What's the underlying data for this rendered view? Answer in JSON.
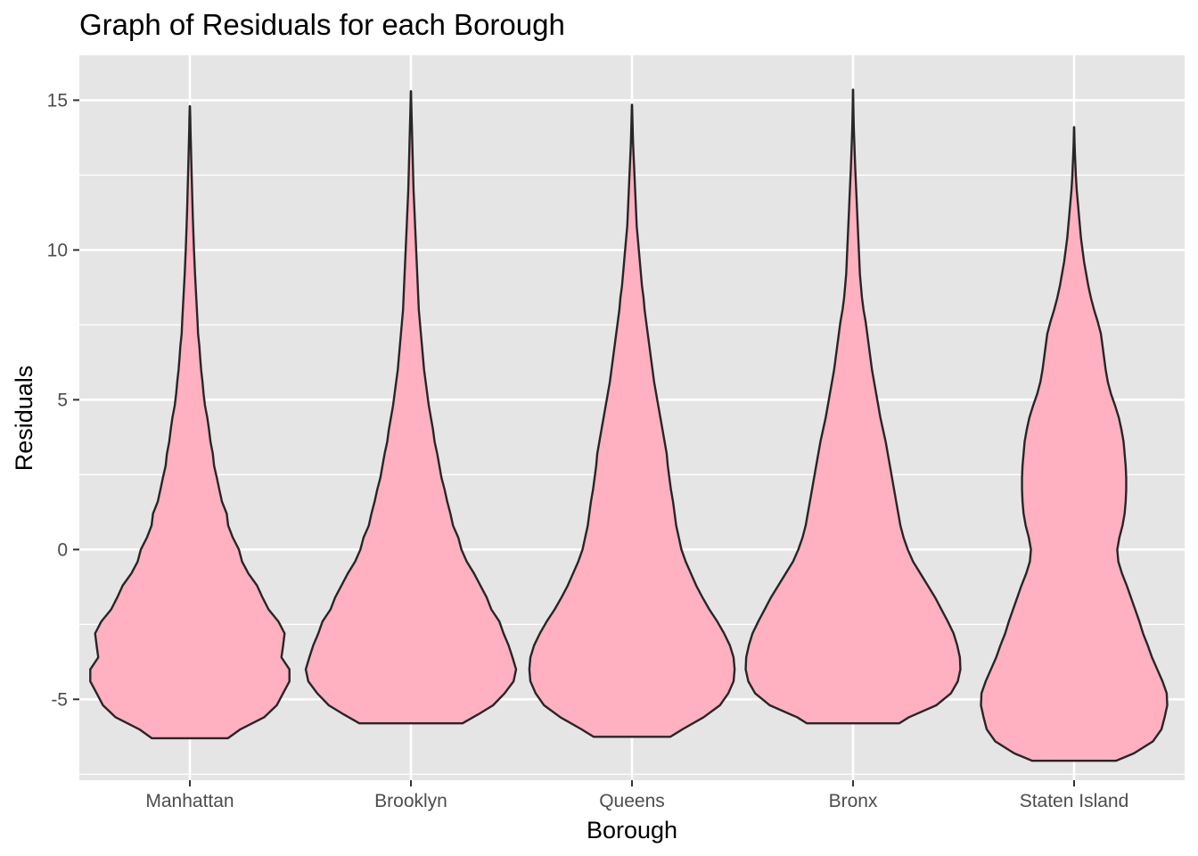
{
  "chart_data": {
    "type": "violin",
    "title": "Graph of Residuals for each Borough",
    "xlabel": "Borough",
    "ylabel": "Residuals",
    "categories": [
      "Manhattan",
      "Brooklyn",
      "Queens",
      "Bronx",
      "Staten Island"
    ],
    "ylim": [
      -7.7,
      16.5
    ],
    "yticks": [
      -5,
      0,
      5,
      10,
      15
    ],
    "ytick_labels": [
      "-5",
      "0",
      "5",
      "10",
      "15"
    ],
    "grid": true,
    "legend": "none",
    "colors": {
      "panel": "#e5e5e5",
      "grid": "#ffffff",
      "fill": "#ffb0c1",
      "outline": "#262626",
      "tick_text": "#4d4d4d",
      "axis_tick": "#333333"
    },
    "violins": [
      {
        "name": "Manhattan",
        "profile": [
          [
            -6.3,
            0.1716
          ],
          [
            -6.0,
            0.2286
          ],
          [
            -5.6,
            0.3357
          ],
          [
            -5.2,
            0.3929
          ],
          [
            -4.8,
            0.4215
          ],
          [
            -4.4,
            0.4505
          ],
          [
            -4.0,
            0.4505
          ],
          [
            -3.6,
            0.4143
          ],
          [
            -3.2,
            0.4219
          ],
          [
            -2.8,
            0.4286
          ],
          [
            -2.4,
            0.4005
          ],
          [
            -2.0,
            0.3562
          ],
          [
            -1.6,
            0.3286
          ],
          [
            -1.2,
            0.3038
          ],
          [
            -0.8,
            0.2648
          ],
          [
            -0.4,
            0.2362
          ],
          [
            0.0,
            0.2219
          ],
          [
            0.4,
            0.1943
          ],
          [
            0.8,
            0.1733
          ],
          [
            1.2,
            0.1667
          ],
          [
            1.6,
            0.1452
          ],
          [
            2.0,
            0.1333
          ],
          [
            2.4,
            0.1219
          ],
          [
            2.8,
            0.1095
          ],
          [
            3.2,
            0.1038
          ],
          [
            3.6,
            0.0933
          ],
          [
            4.0,
            0.0867
          ],
          [
            4.4,
            0.079
          ],
          [
            4.8,
            0.0686
          ],
          [
            5.2,
            0.062
          ],
          [
            5.6,
            0.0571
          ],
          [
            6.0,
            0.051
          ],
          [
            6.4,
            0.0467
          ],
          [
            6.8,
            0.0429
          ],
          [
            7.2,
            0.0371
          ],
          [
            7.6,
            0.0348
          ],
          [
            8.0,
            0.0319
          ],
          [
            8.4,
            0.029
          ],
          [
            8.8,
            0.0262
          ],
          [
            9.2,
            0.0233
          ],
          [
            9.6,
            0.021
          ],
          [
            10.0,
            0.0186
          ],
          [
            10.4,
            0.0167
          ],
          [
            10.8,
            0.0148
          ],
          [
            11.2,
            0.0129
          ],
          [
            11.6,
            0.0114
          ],
          [
            12.0,
            0.01
          ],
          [
            12.4,
            0.0086
          ],
          [
            12.8,
            0.0071
          ],
          [
            13.2,
            0.0057
          ],
          [
            13.6,
            0.0043
          ],
          [
            14.0,
            0.0029
          ],
          [
            14.4,
            0.0019
          ],
          [
            14.8,
            0.0005
          ]
        ]
      },
      {
        "name": "Brooklyn",
        "profile": [
          [
            -5.8,
            0.2333
          ],
          [
            -5.5,
            0.3048
          ],
          [
            -5.2,
            0.3714
          ],
          [
            -4.8,
            0.4238
          ],
          [
            -4.4,
            0.4643
          ],
          [
            -4.0,
            0.4757
          ],
          [
            -3.6,
            0.4595
          ],
          [
            -3.2,
            0.4419
          ],
          [
            -2.8,
            0.419
          ],
          [
            -2.4,
            0.4
          ],
          [
            -2.0,
            0.3638
          ],
          [
            -1.6,
            0.3429
          ],
          [
            -1.2,
            0.3143
          ],
          [
            -0.8,
            0.2857
          ],
          [
            -0.4,
            0.2524
          ],
          [
            0.0,
            0.2286
          ],
          [
            0.4,
            0.2143
          ],
          [
            0.8,
            0.1905
          ],
          [
            1.2,
            0.1786
          ],
          [
            1.6,
            0.1643
          ],
          [
            2.0,
            0.1524
          ],
          [
            2.4,
            0.1381
          ],
          [
            2.8,
            0.1286
          ],
          [
            3.2,
            0.119
          ],
          [
            3.6,
            0.1071
          ],
          [
            4.0,
            0.1
          ],
          [
            4.4,
            0.0905
          ],
          [
            4.8,
            0.081
          ],
          [
            5.2,
            0.0738
          ],
          [
            5.6,
            0.0667
          ],
          [
            6.0,
            0.0595
          ],
          [
            6.4,
            0.0548
          ],
          [
            6.8,
            0.05
          ],
          [
            7.2,
            0.0452
          ],
          [
            7.6,
            0.0405
          ],
          [
            8.0,
            0.0357
          ],
          [
            8.4,
            0.0333
          ],
          [
            8.8,
            0.031
          ],
          [
            9.2,
            0.0286
          ],
          [
            9.6,
            0.0262
          ],
          [
            10.0,
            0.0238
          ],
          [
            10.4,
            0.0214
          ],
          [
            10.8,
            0.019
          ],
          [
            11.2,
            0.0167
          ],
          [
            11.6,
            0.0143
          ],
          [
            12.0,
            0.0119
          ],
          [
            12.4,
            0.0105
          ],
          [
            12.8,
            0.009
          ],
          [
            13.2,
            0.0076
          ],
          [
            13.6,
            0.0062
          ],
          [
            14.0,
            0.0048
          ],
          [
            14.4,
            0.0033
          ],
          [
            14.8,
            0.0019
          ],
          [
            15.3,
            0.0005
          ]
        ]
      },
      {
        "name": "Queens",
        "profile": [
          [
            -6.25,
            0.1738
          ],
          [
            -6.0,
            0.2286
          ],
          [
            -5.6,
            0.3238
          ],
          [
            -5.2,
            0.3976
          ],
          [
            -4.8,
            0.4357
          ],
          [
            -4.4,
            0.4595
          ],
          [
            -4.0,
            0.4643
          ],
          [
            -3.6,
            0.4595
          ],
          [
            -3.2,
            0.4429
          ],
          [
            -2.8,
            0.4167
          ],
          [
            -2.4,
            0.3857
          ],
          [
            -2.0,
            0.35
          ],
          [
            -1.6,
            0.319
          ],
          [
            -1.2,
            0.2905
          ],
          [
            -0.8,
            0.2667
          ],
          [
            -0.4,
            0.2429
          ],
          [
            0.0,
            0.2238
          ],
          [
            0.4,
            0.2119
          ],
          [
            0.8,
            0.2
          ],
          [
            1.2,
            0.1929
          ],
          [
            1.6,
            0.1857
          ],
          [
            2.0,
            0.1762
          ],
          [
            2.4,
            0.169
          ],
          [
            2.8,
            0.1619
          ],
          [
            3.2,
            0.1571
          ],
          [
            3.6,
            0.1476
          ],
          [
            4.0,
            0.1381
          ],
          [
            4.4,
            0.1286
          ],
          [
            4.8,
            0.119
          ],
          [
            5.2,
            0.1095
          ],
          [
            5.6,
            0.1
          ],
          [
            6.0,
            0.0929
          ],
          [
            6.4,
            0.0857
          ],
          [
            6.8,
            0.0786
          ],
          [
            7.2,
            0.0714
          ],
          [
            7.6,
            0.0643
          ],
          [
            8.0,
            0.0571
          ],
          [
            8.4,
            0.0524
          ],
          [
            8.8,
            0.0452
          ],
          [
            9.2,
            0.0405
          ],
          [
            9.6,
            0.0357
          ],
          [
            10.0,
            0.031
          ],
          [
            10.4,
            0.0262
          ],
          [
            10.8,
            0.0214
          ],
          [
            11.2,
            0.019
          ],
          [
            11.6,
            0.0167
          ],
          [
            12.0,
            0.0143
          ],
          [
            12.4,
            0.0119
          ],
          [
            12.8,
            0.0095
          ],
          [
            13.2,
            0.0071
          ],
          [
            13.6,
            0.0048
          ],
          [
            14.0,
            0.0033
          ],
          [
            14.4,
            0.0019
          ],
          [
            14.85,
            0.0005
          ]
        ]
      },
      {
        "name": "Bronx",
        "profile": [
          [
            -5.8,
            0.2095
          ],
          [
            -5.6,
            0.2524
          ],
          [
            -5.2,
            0.3762
          ],
          [
            -4.8,
            0.4429
          ],
          [
            -4.4,
            0.4738
          ],
          [
            -4.0,
            0.4857
          ],
          [
            -3.6,
            0.4833
          ],
          [
            -3.2,
            0.4714
          ],
          [
            -2.8,
            0.4548
          ],
          [
            -2.4,
            0.4286
          ],
          [
            -2.0,
            0.4
          ],
          [
            -1.6,
            0.3714
          ],
          [
            -1.2,
            0.3381
          ],
          [
            -0.8,
            0.3048
          ],
          [
            -0.4,
            0.2714
          ],
          [
            0.0,
            0.2476
          ],
          [
            0.4,
            0.2286
          ],
          [
            0.8,
            0.2143
          ],
          [
            1.2,
            0.2048
          ],
          [
            1.6,
            0.1952
          ],
          [
            2.0,
            0.1857
          ],
          [
            2.4,
            0.1762
          ],
          [
            2.8,
            0.1667
          ],
          [
            3.2,
            0.1571
          ],
          [
            3.6,
            0.1476
          ],
          [
            4.0,
            0.1357
          ],
          [
            4.4,
            0.1238
          ],
          [
            4.8,
            0.1143
          ],
          [
            5.2,
            0.1048
          ],
          [
            5.6,
            0.0952
          ],
          [
            6.0,
            0.0857
          ],
          [
            6.4,
            0.0786
          ],
          [
            6.8,
            0.0714
          ],
          [
            7.2,
            0.0643
          ],
          [
            7.6,
            0.0571
          ],
          [
            8.0,
            0.0476
          ],
          [
            8.4,
            0.0405
          ],
          [
            8.8,
            0.0357
          ],
          [
            9.2,
            0.031
          ],
          [
            9.6,
            0.0286
          ],
          [
            10.0,
            0.0262
          ],
          [
            10.4,
            0.0238
          ],
          [
            10.8,
            0.0214
          ],
          [
            11.2,
            0.019
          ],
          [
            11.6,
            0.0167
          ],
          [
            12.0,
            0.0143
          ],
          [
            12.4,
            0.0119
          ],
          [
            12.8,
            0.0095
          ],
          [
            13.2,
            0.0076
          ],
          [
            13.6,
            0.0057
          ],
          [
            14.0,
            0.0038
          ],
          [
            14.4,
            0.0024
          ],
          [
            14.8,
            0.0014
          ],
          [
            15.35,
            0.0005
          ]
        ]
      },
      {
        "name": "Staten Island",
        "profile": [
          [
            -7.05,
            0.1905
          ],
          [
            -6.8,
            0.2714
          ],
          [
            -6.4,
            0.3571
          ],
          [
            -6.0,
            0.3952
          ],
          [
            -5.6,
            0.4095
          ],
          [
            -5.2,
            0.4214
          ],
          [
            -4.8,
            0.419
          ],
          [
            -4.4,
            0.4
          ],
          [
            -4.0,
            0.3762
          ],
          [
            -3.6,
            0.3524
          ],
          [
            -3.2,
            0.3333
          ],
          [
            -2.8,
            0.3119
          ],
          [
            -2.4,
            0.2952
          ],
          [
            -2.0,
            0.2762
          ],
          [
            -1.6,
            0.2571
          ],
          [
            -1.2,
            0.2381
          ],
          [
            -0.8,
            0.2167
          ],
          [
            -0.4,
            0.2
          ],
          [
            0.0,
            0.1952
          ],
          [
            0.4,
            0.2048
          ],
          [
            0.8,
            0.219
          ],
          [
            1.2,
            0.2286
          ],
          [
            1.6,
            0.2333
          ],
          [
            2.0,
            0.2357
          ],
          [
            2.4,
            0.2357
          ],
          [
            2.8,
            0.2333
          ],
          [
            3.2,
            0.2286
          ],
          [
            3.6,
            0.2238
          ],
          [
            4.0,
            0.2143
          ],
          [
            4.4,
            0.2024
          ],
          [
            4.8,
            0.1857
          ],
          [
            5.2,
            0.1667
          ],
          [
            5.6,
            0.1524
          ],
          [
            6.0,
            0.1429
          ],
          [
            6.4,
            0.1357
          ],
          [
            6.8,
            0.1286
          ],
          [
            7.2,
            0.1214
          ],
          [
            7.6,
            0.1071
          ],
          [
            8.0,
            0.0905
          ],
          [
            8.4,
            0.0762
          ],
          [
            8.8,
            0.0643
          ],
          [
            9.2,
            0.0548
          ],
          [
            9.6,
            0.0452
          ],
          [
            10.0,
            0.0381
          ],
          [
            10.4,
            0.031
          ],
          [
            10.8,
            0.0262
          ],
          [
            11.2,
            0.0214
          ],
          [
            11.6,
            0.0167
          ],
          [
            12.0,
            0.0119
          ],
          [
            12.4,
            0.0086
          ],
          [
            12.8,
            0.0062
          ],
          [
            13.2,
            0.0038
          ],
          [
            13.6,
            0.0019
          ],
          [
            14.1,
            0.0005
          ]
        ]
      }
    ]
  }
}
